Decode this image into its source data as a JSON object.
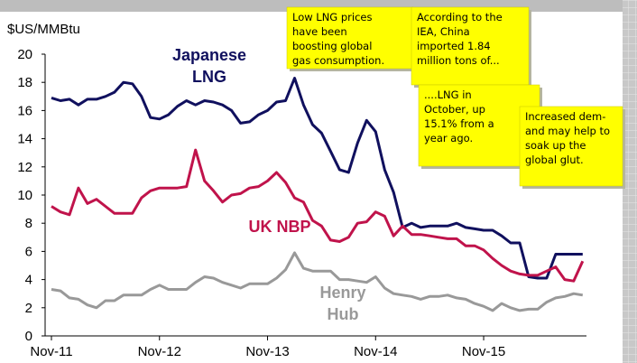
{
  "chart_data": {
    "type": "line",
    "y_axis_label": "$US/MMBtu",
    "categories": [
      "Nov-11",
      null,
      null,
      null,
      null,
      null,
      null,
      null,
      null,
      null,
      null,
      null,
      "Nov-12",
      null,
      null,
      null,
      null,
      null,
      null,
      null,
      null,
      null,
      null,
      null,
      "Nov-13",
      null,
      null,
      null,
      null,
      null,
      null,
      null,
      null,
      null,
      null,
      null,
      "Nov-14",
      null,
      null,
      null,
      null,
      null,
      null,
      null,
      null,
      null,
      null,
      null,
      "Nov-15",
      null,
      null,
      null,
      null,
      null,
      null,
      null,
      null,
      null,
      null,
      null
    ],
    "ylim": [
      0,
      20
    ],
    "yticks": [
      0,
      2,
      4,
      6,
      8,
      10,
      12,
      14,
      16,
      18,
      20
    ],
    "series": [
      {
        "name": "Japanese LNG",
        "color": "#10105e",
        "values": [
          16.9,
          16.7,
          16.8,
          16.4,
          16.8,
          16.8,
          17.0,
          17.3,
          18.0,
          17.9,
          17.0,
          15.5,
          15.4,
          15.7,
          16.3,
          16.7,
          16.4,
          16.7,
          16.6,
          16.4,
          16.0,
          15.1,
          15.2,
          15.7,
          16.0,
          16.6,
          16.7,
          18.3,
          16.4,
          15.0,
          14.4,
          13.1,
          11.8,
          11.6,
          13.7,
          15.3,
          14.5,
          11.8,
          10.2,
          7.7,
          8.0,
          7.7,
          7.8,
          7.8,
          7.8,
          8.0,
          7.7,
          7.6,
          7.5,
          7.5,
          7.1,
          6.6,
          6.6,
          4.2,
          4.1,
          4.1,
          5.8,
          5.8,
          5.8,
          5.8
        ]
      },
      {
        "name": "UK NBP",
        "color": "#c0134b",
        "values": [
          9.2,
          8.8,
          8.6,
          10.5,
          9.4,
          9.7,
          9.2,
          8.7,
          8.7,
          8.7,
          9.8,
          10.3,
          10.5,
          10.5,
          10.5,
          10.6,
          13.2,
          11.0,
          10.3,
          9.5,
          10.0,
          10.1,
          10.5,
          10.6,
          11.0,
          11.6,
          10.9,
          9.8,
          9.5,
          8.2,
          7.8,
          6.8,
          6.7,
          7.0,
          8.0,
          8.1,
          8.8,
          8.5,
          7.1,
          7.8,
          7.2,
          7.2,
          7.1,
          7.0,
          6.9,
          6.9,
          6.4,
          6.4,
          6.1,
          5.5,
          5.0,
          4.6,
          4.4,
          4.3,
          4.3,
          4.6,
          4.9,
          4.0,
          3.9,
          5.3
        ]
      },
      {
        "name": "Henry Hub",
        "color": "#999999",
        "values": [
          3.3,
          3.2,
          2.7,
          2.6,
          2.2,
          2.0,
          2.5,
          2.5,
          2.9,
          2.9,
          2.9,
          3.3,
          3.6,
          3.3,
          3.3,
          3.3,
          3.8,
          4.2,
          4.1,
          3.8,
          3.6,
          3.4,
          3.7,
          3.7,
          3.7,
          4.1,
          4.7,
          5.9,
          4.8,
          4.6,
          4.6,
          4.6,
          4.0,
          4.0,
          3.9,
          3.8,
          4.2,
          3.4,
          3.0,
          2.9,
          2.8,
          2.6,
          2.8,
          2.8,
          2.9,
          2.7,
          2.6,
          2.3,
          2.1,
          1.8,
          2.3,
          2.0,
          1.8,
          1.9,
          1.9,
          2.4,
          2.7,
          2.8,
          3.0,
          2.9
        ]
      }
    ],
    "notes": [
      {
        "lines": [
          "Low LNG prices",
          "have been",
          "boosting global",
          "gas consumption."
        ]
      },
      {
        "lines": [
          "According to the",
          "IEA, China",
          "imported 1.84",
          "million tons of..."
        ]
      },
      {
        "lines": [
          "....LNG in",
          "October, up",
          "15.1% from a",
          "year ago."
        ]
      },
      {
        "lines": [
          "Increased dem-",
          "and may help to",
          "soak up the",
          "global glut."
        ]
      }
    ]
  }
}
